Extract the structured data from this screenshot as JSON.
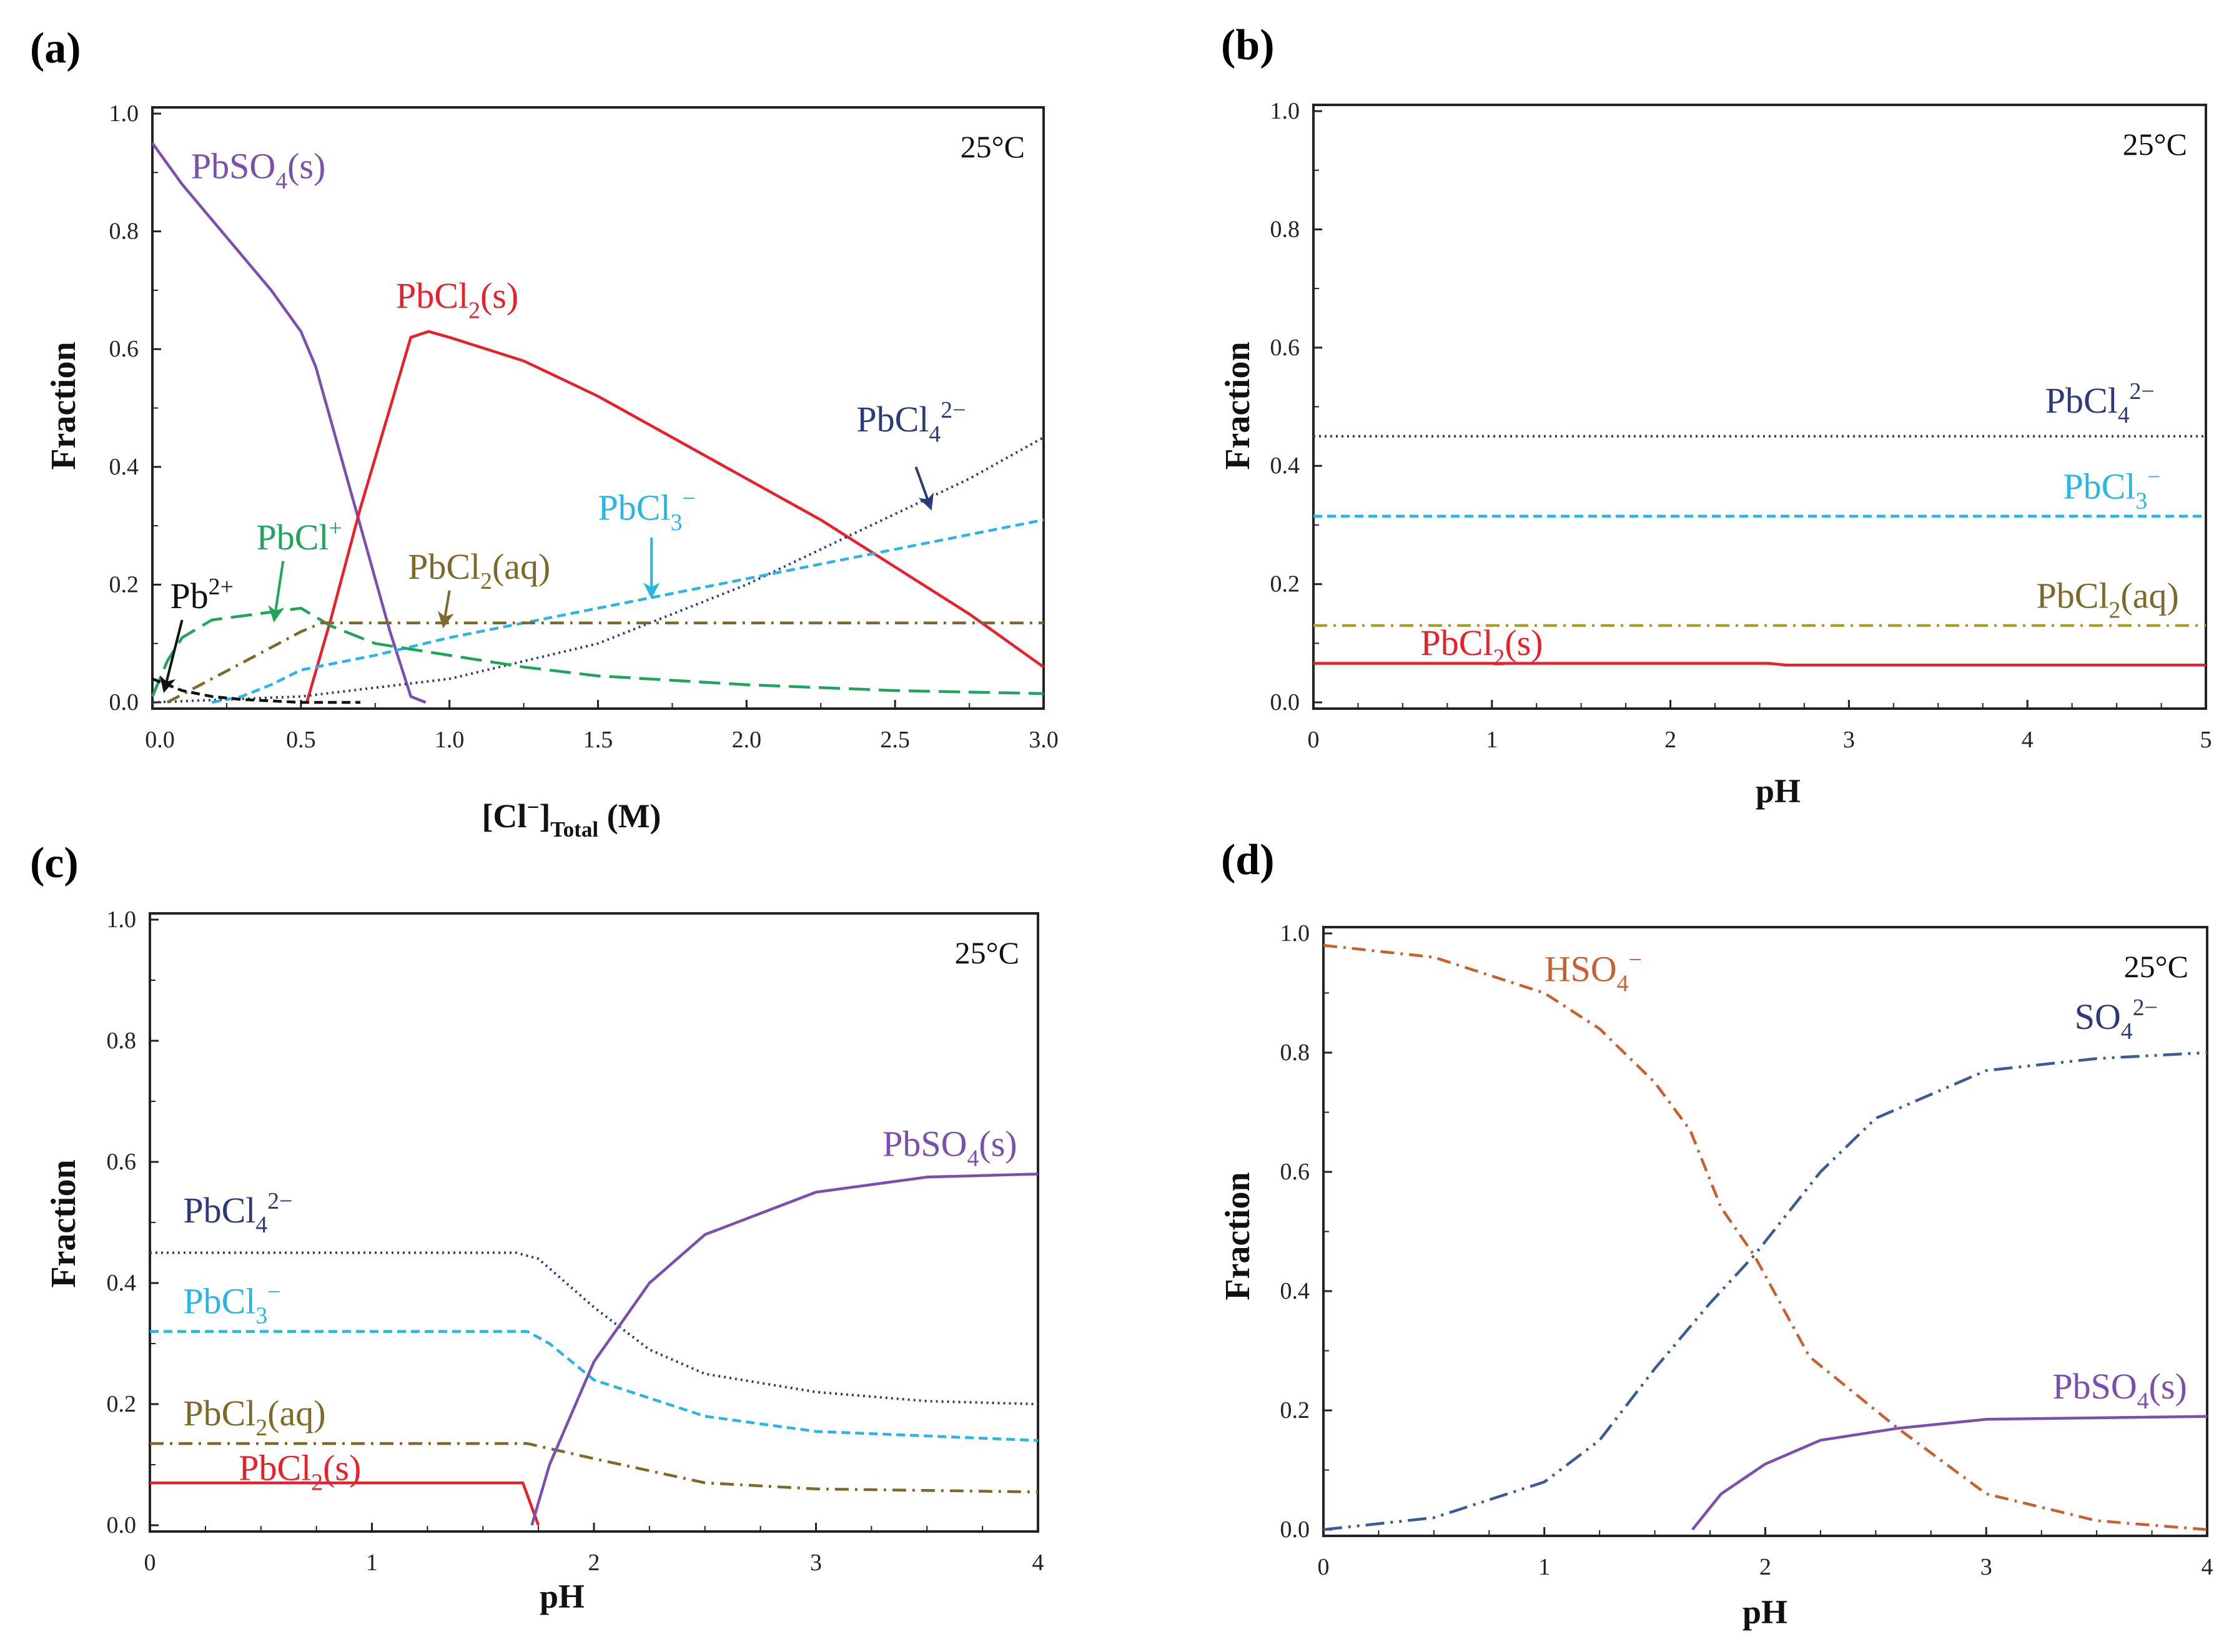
{
  "chart_data": [
    {
      "id": "a",
      "panel_label": "(a)",
      "type": "line",
      "temperature": "25°C",
      "ylabel": "Fraction",
      "xlabel": [
        {
          "t": "[Cl"
        },
        {
          "t": "−",
          "s": "sup"
        },
        {
          "t": "]"
        },
        {
          "t": "Total",
          "s": "sub"
        },
        {
          "t": " (M)"
        }
      ],
      "xlim": [
        0,
        3
      ],
      "ylim": [
        0,
        1
      ],
      "xticks": [
        "0.0",
        "0.5",
        "1.0",
        "1.5",
        "2.0",
        "2.5",
        "3.0"
      ],
      "xtick_values": [
        0,
        0.5,
        1,
        1.5,
        2,
        2.5,
        3
      ],
      "yticks": [
        "0.0",
        "0.2",
        "0.4",
        "0.6",
        "0.8",
        "1.0"
      ],
      "ytick_values": [
        0,
        0.2,
        0.4,
        0.6,
        0.8,
        1.0
      ],
      "series": [
        {
          "name": "PbSO4(s)",
          "color": "#7b4fb0",
          "style": "solid",
          "x": [
            0,
            0.1,
            0.2,
            0.3,
            0.4,
            0.5,
            0.55,
            0.6,
            0.7,
            0.8,
            0.87,
            0.92
          ],
          "y": [
            0.95,
            0.88,
            0.82,
            0.76,
            0.7,
            0.63,
            0.57,
            0.48,
            0.3,
            0.12,
            0.01,
            0
          ]
        },
        {
          "name": "PbCl2(s)",
          "color": "#e8202a",
          "style": "solid",
          "x": [
            0.52,
            0.6,
            0.7,
            0.8,
            0.87,
            0.93,
            1.0,
            1.25,
            1.5,
            1.75,
            2.0,
            2.25,
            2.5,
            2.75,
            3.0
          ],
          "y": [
            0,
            0.14,
            0.33,
            0.5,
            0.62,
            0.63,
            0.62,
            0.58,
            0.52,
            0.45,
            0.38,
            0.31,
            0.23,
            0.15,
            0.06
          ]
        },
        {
          "name": "PbCl4 2-",
          "color": "#2a3a7a",
          "style": "dotted",
          "x": [
            0,
            0.5,
            1.0,
            1.25,
            1.5,
            1.75,
            2.0,
            2.25,
            2.5,
            2.75,
            3.0
          ],
          "y": [
            0,
            0.01,
            0.04,
            0.07,
            0.1,
            0.15,
            0.2,
            0.26,
            0.32,
            0.38,
            0.45
          ]
        },
        {
          "name": "PbCl3-",
          "color": "#29b6e5",
          "style": "dashed",
          "x": [
            0.2,
            0.3,
            0.4,
            0.5,
            0.75,
            1.0,
            1.5,
            2.0,
            2.5,
            3.0
          ],
          "y": [
            0,
            0.01,
            0.03,
            0.055,
            0.08,
            0.11,
            0.16,
            0.21,
            0.26,
            0.31
          ]
        },
        {
          "name": "PbCl+",
          "color": "#1fa55a",
          "style": "longdash",
          "x": [
            0,
            0.05,
            0.1,
            0.2,
            0.35,
            0.5,
            0.6,
            0.75,
            1.0,
            1.25,
            1.5,
            2.0,
            2.5,
            3.0
          ],
          "y": [
            0.01,
            0.07,
            0.11,
            0.14,
            0.15,
            0.16,
            0.13,
            0.1,
            0.08,
            0.06,
            0.045,
            0.03,
            0.02,
            0.015
          ]
        },
        {
          "name": "PbCl2(aq)",
          "color": "#7d6a2a",
          "style": "dashdot",
          "x": [
            0.05,
            0.2,
            0.35,
            0.5,
            0.57,
            3.0
          ],
          "y": [
            0,
            0.04,
            0.08,
            0.12,
            0.135,
            0.135
          ]
        },
        {
          "name": "Pb2+",
          "color": "#111111",
          "style": "dashed",
          "x": [
            0,
            0.1,
            0.2,
            0.3,
            0.5,
            0.7
          ],
          "y": [
            0.04,
            0.02,
            0.01,
            0.005,
            0,
            0
          ]
        }
      ],
      "annotations": [
        {
          "parts": [
            {
              "t": "PbSO"
            },
            {
              "t": "4",
              "s": "sub"
            },
            {
              "t": "(s)"
            }
          ],
          "color": "#7b4fb0",
          "x": 0.13,
          "y": 0.89
        },
        {
          "parts": [
            {
              "t": "PbCl"
            },
            {
              "t": "2",
              "s": "sub"
            },
            {
              "t": "(s)"
            }
          ],
          "color": "#e8202a",
          "x": 0.82,
          "y": 0.67
        },
        {
          "parts": [
            {
              "t": "PbCl"
            },
            {
              "t": "4",
              "s": "sub"
            },
            {
              "t": "2−",
              "s": "sup"
            }
          ],
          "color": "#2a3a7a",
          "x": 2.37,
          "y": 0.46,
          "arrow": [
            2.57,
            0.4,
            2.62,
            0.33
          ]
        },
        {
          "parts": [
            {
              "t": "PbCl"
            },
            {
              "t": "3",
              "s": "sub"
            },
            {
              "t": "−",
              "s": "sup"
            }
          ],
          "color": "#29b6e5",
          "x": 1.5,
          "y": 0.31,
          "arrow": [
            1.68,
            0.28,
            1.68,
            0.18
          ]
        },
        {
          "parts": [
            {
              "t": "PbCl"
            },
            {
              "t": "+",
              "s": "sup"
            }
          ],
          "color": "#1fa55a",
          "x": 0.35,
          "y": 0.26,
          "arrow": [
            0.44,
            0.24,
            0.41,
            0.14
          ]
        },
        {
          "parts": [
            {
              "t": "PbCl"
            },
            {
              "t": "2",
              "s": "sub"
            },
            {
              "t": "(aq)"
            }
          ],
          "color": "#7d6a2a",
          "x": 0.86,
          "y": 0.21,
          "arrow": [
            1.0,
            0.19,
            0.98,
            0.13
          ]
        },
        {
          "parts": [
            {
              "t": "Pb"
            },
            {
              "t": "2+",
              "s": "sup"
            }
          ],
          "color": "#111111",
          "x": 0.06,
          "y": 0.16,
          "arrow": [
            0.1,
            0.14,
            0.04,
            0.02
          ]
        }
      ]
    },
    {
      "id": "b",
      "panel_label": "(b)",
      "type": "line",
      "temperature": "25°C",
      "ylabel": "Fraction",
      "xlabel": [
        {
          "t": "pH"
        }
      ],
      "xlim": [
        0,
        5
      ],
      "ylim": [
        0,
        1
      ],
      "xticks": [
        "0",
        "1",
        "2",
        "3",
        "4",
        "5"
      ],
      "xtick_values": [
        0,
        1,
        2,
        3,
        4,
        5
      ],
      "yticks": [
        "0.0",
        "0.2",
        "0.4",
        "0.6",
        "0.8",
        "1.0"
      ],
      "ytick_values": [
        0,
        0.2,
        0.4,
        0.6,
        0.8,
        1.0
      ],
      "series": [
        {
          "name": "PbCl4 2-",
          "color": "#2a3a7a",
          "style": "dotted",
          "x": [
            0,
            5
          ],
          "y": [
            0.45,
            0.45
          ]
        },
        {
          "name": "PbCl3-",
          "color": "#29b6e5",
          "style": "dashed",
          "x": [
            0,
            5
          ],
          "y": [
            0.315,
            0.315
          ]
        },
        {
          "name": "PbCl2(aq)",
          "color": "#a8a020",
          "style": "dashdot",
          "x": [
            0,
            5
          ],
          "y": [
            0.13,
            0.13
          ]
        },
        {
          "name": "PbCl2(s)",
          "color": "#e8202a",
          "style": "solid",
          "x": [
            0,
            2.55,
            2.65,
            5
          ],
          "y": [
            0.066,
            0.066,
            0.063,
            0.063
          ]
        }
      ],
      "annotations": [
        {
          "parts": [
            {
              "t": "PbCl"
            },
            {
              "t": "4",
              "s": "sub"
            },
            {
              "t": "2−",
              "s": "sup"
            }
          ],
          "color": "#2a3a7a",
          "x": 4.1,
          "y": 0.49
        },
        {
          "parts": [
            {
              "t": "PbCl"
            },
            {
              "t": "3",
              "s": "sub"
            },
            {
              "t": "−",
              "s": "sup"
            }
          ],
          "color": "#29b6e5",
          "x": 4.2,
          "y": 0.345
        },
        {
          "parts": [
            {
              "t": "PbCl"
            },
            {
              "t": "2",
              "s": "sub"
            },
            {
              "t": "(aq)"
            }
          ],
          "color": "#7d6a2a",
          "x": 4.05,
          "y": 0.16
        },
        {
          "parts": [
            {
              "t": "PbCl"
            },
            {
              "t": "2",
              "s": "sub"
            },
            {
              "t": "(s)"
            }
          ],
          "color": "#e8202a",
          "x": 0.6,
          "y": 0.08
        }
      ]
    },
    {
      "id": "c",
      "panel_label": "(c)",
      "type": "line",
      "temperature": "25°C",
      "ylabel": "Fraction",
      "xlabel": [
        {
          "t": "pH"
        }
      ],
      "xlim": [
        0,
        4
      ],
      "ylim": [
        0,
        1
      ],
      "xticks": [
        "0",
        "1",
        "2",
        "3",
        "4"
      ],
      "xtick_values": [
        0,
        1,
        2,
        3,
        4
      ],
      "yticks": [
        "0.0",
        "0.2",
        "0.4",
        "0.6",
        "0.8",
        "1.0"
      ],
      "ytick_values": [
        0,
        0.2,
        0.4,
        0.6,
        0.8,
        1.0
      ],
      "series": [
        {
          "name": "PbCl4 2-",
          "color": "#2a3a7a",
          "style": "dotted",
          "x": [
            0,
            1.65,
            1.75,
            2.0,
            2.25,
            2.5,
            3.0,
            3.5,
            4.0
          ],
          "y": [
            0.45,
            0.45,
            0.44,
            0.36,
            0.29,
            0.25,
            0.22,
            0.205,
            0.2
          ]
        },
        {
          "name": "PbCl3-",
          "color": "#29b6e5",
          "style": "dashed",
          "x": [
            0,
            1.7,
            1.8,
            2.0,
            2.5,
            3.0,
            4.0
          ],
          "y": [
            0.32,
            0.32,
            0.3,
            0.24,
            0.18,
            0.155,
            0.14
          ]
        },
        {
          "name": "PbCl2(aq)",
          "color": "#7d6a2a",
          "style": "dashdot",
          "x": [
            0,
            1.7,
            2.0,
            2.5,
            3.0,
            4.0
          ],
          "y": [
            0.135,
            0.135,
            0.11,
            0.07,
            0.06,
            0.055
          ]
        },
        {
          "name": "PbCl2(s)",
          "color": "#e8202a",
          "style": "solid",
          "x": [
            0,
            1.68,
            1.75
          ],
          "y": [
            0.07,
            0.07,
            0
          ]
        },
        {
          "name": "PbSO4(s)",
          "color": "#7b4fb0",
          "style": "solid",
          "x": [
            1.72,
            1.8,
            2.0,
            2.25,
            2.5,
            3.0,
            3.5,
            4.0
          ],
          "y": [
            0,
            0.1,
            0.27,
            0.4,
            0.48,
            0.55,
            0.575,
            0.58
          ]
        }
      ],
      "annotations": [
        {
          "parts": [
            {
              "t": "PbCl"
            },
            {
              "t": "4",
              "s": "sub"
            },
            {
              "t": "2−",
              "s": "sup"
            }
          ],
          "color": "#2a3a7a",
          "x": 0.15,
          "y": 0.5
        },
        {
          "parts": [
            {
              "t": "PbCl"
            },
            {
              "t": "3",
              "s": "sub"
            },
            {
              "t": "−",
              "s": "sup"
            }
          ],
          "color": "#29b6e5",
          "x": 0.15,
          "y": 0.35
        },
        {
          "parts": [
            {
              "t": "PbCl"
            },
            {
              "t": "2",
              "s": "sub"
            },
            {
              "t": "(aq)"
            }
          ],
          "color": "#7d6a2a",
          "x": 0.15,
          "y": 0.165
        },
        {
          "parts": [
            {
              "t": "PbCl"
            },
            {
              "t": "2",
              "s": "sub"
            },
            {
              "t": "(s)"
            }
          ],
          "color": "#e8202a",
          "x": 0.4,
          "y": 0.075
        },
        {
          "parts": [
            {
              "t": "PbSO"
            },
            {
              "t": "4",
              "s": "sub"
            },
            {
              "t": "(s)"
            }
          ],
          "color": "#7b4fb0",
          "x": 3.3,
          "y": 0.61
        }
      ]
    },
    {
      "id": "d",
      "panel_label": "(d)",
      "type": "line",
      "temperature": "25°C",
      "ylabel": "Fraction",
      "xlabel": [
        {
          "t": "pH"
        }
      ],
      "xlim": [
        0,
        4
      ],
      "ylim": [
        0,
        1
      ],
      "xticks": [
        "0",
        "1",
        "2",
        "3",
        "4"
      ],
      "xtick_values": [
        0,
        1,
        2,
        3,
        4
      ],
      "yticks": [
        "0.0",
        "0.2",
        "0.4",
        "0.6",
        "0.8",
        "1.0"
      ],
      "ytick_values": [
        0,
        0.2,
        0.4,
        0.6,
        0.8,
        1.0
      ],
      "series": [
        {
          "name": "HSO4-",
          "color": "#c8602f",
          "style": "dashdot",
          "x": [
            0,
            0.5,
            1.0,
            1.25,
            1.5,
            1.66,
            1.8,
            1.95,
            2.2,
            2.6,
            3.0,
            3.5,
            4.0
          ],
          "y": [
            0.98,
            0.96,
            0.9,
            0.84,
            0.75,
            0.67,
            0.54,
            0.46,
            0.29,
            0.17,
            0.06,
            0.015,
            0
          ]
        },
        {
          "name": "SO4 2-",
          "color": "#3a5a9a",
          "style": "dashdotdot",
          "x": [
            0,
            0.5,
            1.0,
            1.25,
            1.5,
            1.75,
            1.95,
            2.25,
            2.5,
            3.0,
            3.5,
            4.0
          ],
          "y": [
            0,
            0.02,
            0.08,
            0.15,
            0.27,
            0.38,
            0.46,
            0.6,
            0.69,
            0.77,
            0.79,
            0.8
          ]
        },
        {
          "name": "PbSO4(s)",
          "color": "#7b4fb0",
          "style": "solid",
          "x": [
            1.67,
            1.8,
            2.0,
            2.25,
            2.6,
            3.0,
            4.0
          ],
          "y": [
            0,
            0.06,
            0.11,
            0.15,
            0.17,
            0.185,
            0.19
          ]
        }
      ],
      "annotations": [
        {
          "parts": [
            {
              "t": "HSO"
            },
            {
              "t": "4",
              "s": "sub"
            },
            {
              "t": "−",
              "s": "sup"
            }
          ],
          "color": "#c8602f",
          "x": 1.0,
          "y": 0.92
        },
        {
          "parts": [
            {
              "t": "SO"
            },
            {
              "t": "4",
              "s": "sub"
            },
            {
              "t": "2−",
              "s": "sup"
            }
          ],
          "color": "#2a3a7a",
          "x": 3.4,
          "y": 0.84
        },
        {
          "parts": [
            {
              "t": "PbSO"
            },
            {
              "t": "4",
              "s": "sub"
            },
            {
              "t": "(s)"
            }
          ],
          "color": "#7b4fb0",
          "x": 3.3,
          "y": 0.22
        }
      ]
    }
  ]
}
